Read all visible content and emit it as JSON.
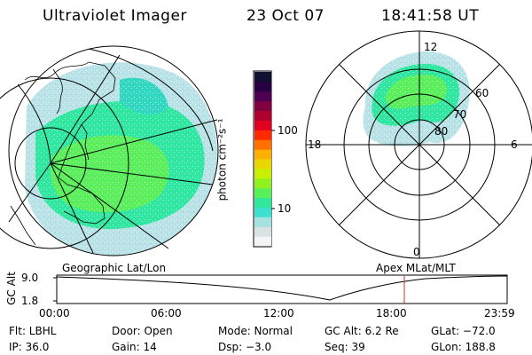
{
  "header": {
    "instrument": "Ultraviolet Imager",
    "date": "23 Oct 07",
    "time": "18:41:58 UT"
  },
  "colorbar": {
    "unit_label": "photon cm⁻²s⁻¹",
    "ticks": [
      "100",
      "10"
    ],
    "colors": [
      "#f4f4f4",
      "#d8e2e2",
      "#a6e0e0",
      "#40e0d0",
      "#30e89a",
      "#5af05a",
      "#90f020",
      "#c8f000",
      "#e8d800",
      "#ffb000",
      "#ff7000",
      "#ff2a00",
      "#e00020",
      "#b00030",
      "#800040",
      "#500050",
      "#280040",
      "#101030"
    ]
  },
  "geo_panel": {
    "label": "Geographic Lat/Lon"
  },
  "polar_panel": {
    "label": "Apex MLat/MLT",
    "mlt_labels": {
      "top": "12",
      "left": "18",
      "right": "6",
      "bottom": "0"
    },
    "lat_labels": [
      "60",
      "70",
      "80"
    ]
  },
  "timeline": {
    "ylabel": "GC Alt",
    "yticks": [
      "9.0",
      "1.8"
    ],
    "xticks": [
      "00:00",
      "06:00",
      "12:00",
      "18:00",
      "23:59"
    ],
    "marker_color": "#c03030"
  },
  "status": {
    "filter": "Flt: LBHL",
    "door": "Door: Open",
    "mode": "Mode: Normal",
    "gc_alt": "GC Alt: 6.2 Re",
    "glat": "GLat: −72.0",
    "ip": "IP: 36.0",
    "gain": "Gain: 14",
    "dsp": "Dsp:    −3.0",
    "seq": "Seq: 39",
    "glon": "GLon: 188.8"
  }
}
